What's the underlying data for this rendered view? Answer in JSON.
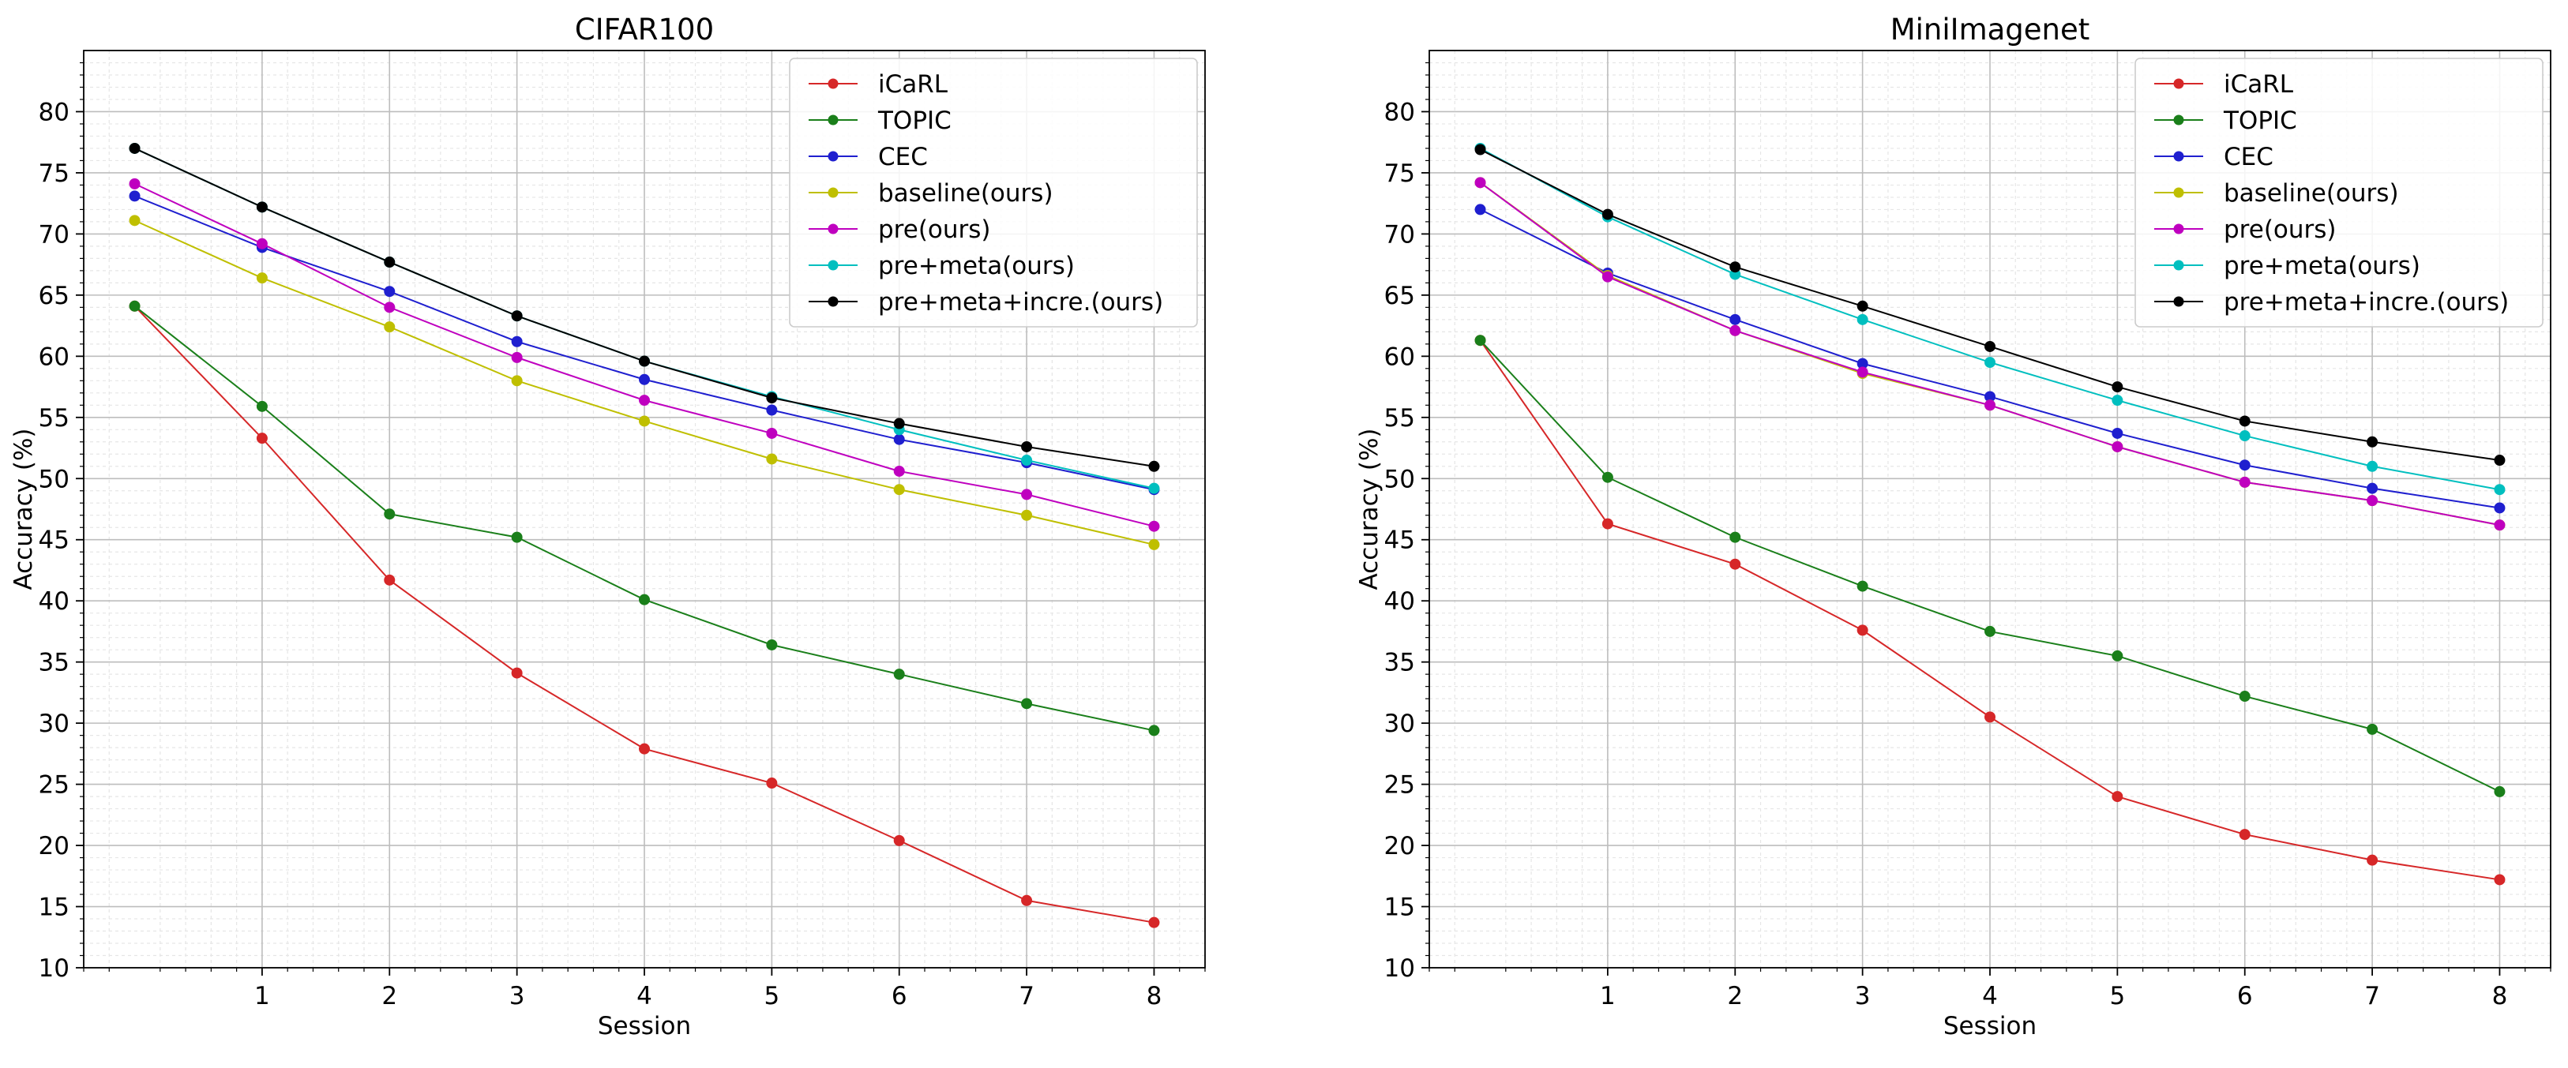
{
  "chart_data": [
    {
      "type": "line",
      "title": "CIFAR100",
      "xlabel": "Session",
      "ylabel": "Accuracy (%)",
      "xlim": [
        -0.4,
        8.4
      ],
      "ylim": [
        10,
        85
      ],
      "x_ticks": [
        1,
        2,
        3,
        4,
        5,
        6,
        7,
        8
      ],
      "y_ticks": [
        10,
        15,
        20,
        25,
        30,
        35,
        40,
        45,
        50,
        55,
        60,
        65,
        70,
        75,
        80
      ],
      "grid": true,
      "legend_position": "top-right",
      "x": [
        0,
        1,
        2,
        3,
        4,
        5,
        6,
        7,
        8
      ],
      "series": [
        {
          "name": "iCaRL",
          "color": "#d62728",
          "values": [
            64.1,
            53.3,
            41.7,
            34.1,
            27.9,
            25.1,
            20.4,
            15.5,
            13.7
          ]
        },
        {
          "name": "TOPIC",
          "color": "#1a7f1a",
          "values": [
            64.1,
            55.9,
            47.1,
            45.2,
            40.1,
            36.4,
            34.0,
            31.6,
            29.4
          ]
        },
        {
          "name": "CEC",
          "color": "#1f1fcf",
          "values": [
            73.1,
            68.9,
            65.3,
            61.2,
            58.1,
            55.6,
            53.2,
            51.3,
            49.1
          ]
        },
        {
          "name": "baseline(ours)",
          "color": "#bfbf00",
          "values": [
            71.1,
            66.4,
            62.4,
            58.0,
            54.7,
            51.6,
            49.1,
            47.0,
            44.6
          ]
        },
        {
          "name": "pre(ours)",
          "color": "#bf00bf",
          "values": [
            74.1,
            69.2,
            64.0,
            59.9,
            56.4,
            53.7,
            50.6,
            48.7,
            46.1
          ]
        },
        {
          "name": "pre+meta(ours)",
          "color": "#00bfbf",
          "values": [
            77.0,
            72.2,
            67.7,
            63.3,
            59.6,
            56.7,
            54.0,
            51.5,
            49.2
          ]
        },
        {
          "name": "pre+meta+incre.(ours)",
          "color": "#000000",
          "values": [
            77.0,
            72.2,
            67.7,
            63.3,
            59.6,
            56.6,
            54.5,
            52.6,
            51.0
          ]
        }
      ]
    },
    {
      "type": "line",
      "title": "MiniImagenet",
      "xlabel": "Session",
      "ylabel": "Accuracy (%)",
      "xlim": [
        -0.4,
        8.4
      ],
      "ylim": [
        10,
        85
      ],
      "x_ticks": [
        1,
        2,
        3,
        4,
        5,
        6,
        7,
        8
      ],
      "y_ticks": [
        10,
        15,
        20,
        25,
        30,
        35,
        40,
        45,
        50,
        55,
        60,
        65,
        70,
        75,
        80
      ],
      "grid": true,
      "legend_position": "top-right",
      "x": [
        0,
        1,
        2,
        3,
        4,
        5,
        6,
        7,
        8
      ],
      "series": [
        {
          "name": "iCaRL",
          "color": "#d62728",
          "values": [
            61.3,
            46.3,
            43.0,
            37.6,
            30.5,
            24.0,
            20.9,
            18.8,
            17.2
          ]
        },
        {
          "name": "TOPIC",
          "color": "#1a7f1a",
          "values": [
            61.3,
            50.1,
            45.2,
            41.2,
            37.5,
            35.5,
            32.2,
            29.5,
            24.4
          ]
        },
        {
          "name": "CEC",
          "color": "#1f1fcf",
          "values": [
            72.0,
            66.8,
            63.0,
            59.4,
            56.7,
            53.7,
            51.1,
            49.2,
            47.6
          ]
        },
        {
          "name": "baseline(ours)",
          "color": "#bfbf00",
          "values": [
            74.2,
            66.6,
            62.1,
            58.6,
            56.0,
            52.6,
            49.7,
            48.2,
            46.2
          ]
        },
        {
          "name": "pre(ours)",
          "color": "#bf00bf",
          "values": [
            74.2,
            66.5,
            62.1,
            58.7,
            56.0,
            52.6,
            49.7,
            48.2,
            46.2
          ]
        },
        {
          "name": "pre+meta(ours)",
          "color": "#00bfbf",
          "values": [
            77.0,
            71.4,
            66.7,
            63.0,
            59.5,
            56.4,
            53.5,
            51.0,
            49.1
          ]
        },
        {
          "name": "pre+meta+incre.(ours)",
          "color": "#000000",
          "values": [
            76.9,
            71.6,
            67.3,
            64.1,
            60.8,
            57.5,
            54.7,
            53.0,
            51.5
          ]
        }
      ]
    }
  ]
}
